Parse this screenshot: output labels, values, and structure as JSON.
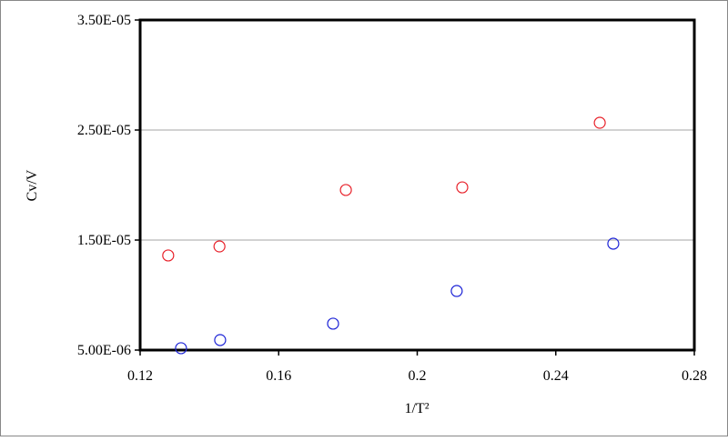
{
  "chart_data": {
    "type": "scatter",
    "x_label": "1/T²",
    "y_label": "Cv/V",
    "xlim": [
      0.12,
      0.28
    ],
    "xticks": [
      0.12,
      0.16,
      0.2,
      0.24,
      0.28
    ],
    "ylim": [
      5e-06,
      3.5e-05
    ],
    "yticks": [
      {
        "value": 5e-06,
        "label": "5.00E-06"
      },
      {
        "value": 1.5e-05,
        "label": "1.50E-05"
      },
      {
        "value": 2.5e-05,
        "label": "2.50E-05"
      },
      {
        "value": 3.5e-05,
        "label": "3.50E-05"
      }
    ],
    "grid": true,
    "series": [
      {
        "color": "#e8212a",
        "x": [
          0.1281,
          0.1429,
          0.1794,
          0.213,
          0.2527
        ],
        "values": [
          1.36e-05,
          1.442e-05,
          1.955e-05,
          1.979e-05,
          2.566e-05
        ]
      },
      {
        "color": "#1b22d6",
        "x": [
          0.1318,
          0.1431,
          0.1757,
          0.2114,
          0.2566
        ],
        "values": [
          5.17e-06,
          5.91e-06,
          7.4e-06,
          1.037e-05,
          1.467e-05
        ]
      }
    ]
  }
}
